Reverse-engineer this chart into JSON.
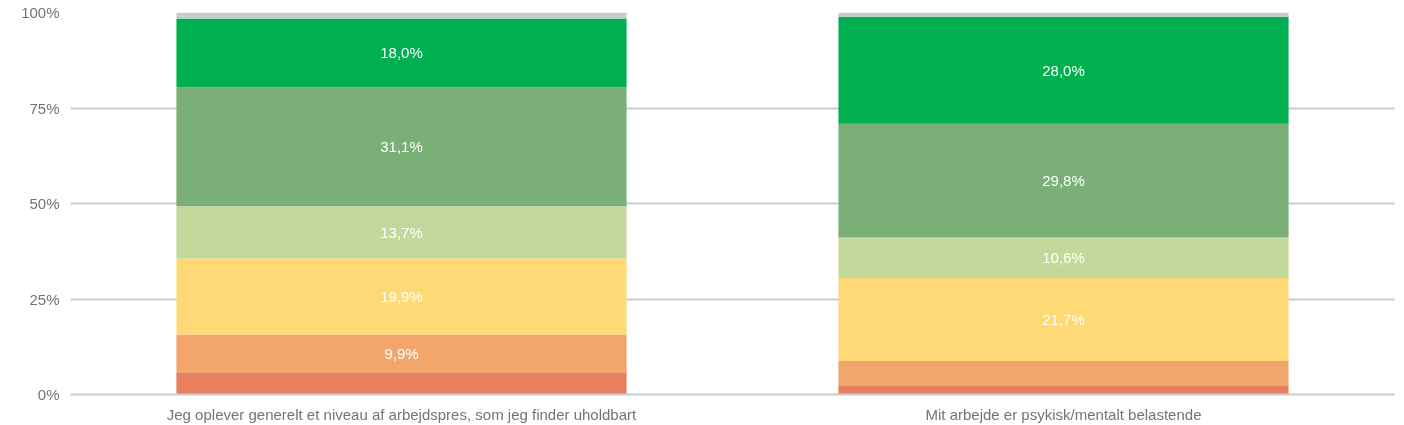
{
  "chart_data": {
    "type": "bar",
    "stacked": true,
    "categories": [
      "Jeg oplever generelt et niveau af arbejdspres, som jeg finder uholdbart",
      "Mit arbejde er psykisk/mentalt belastende"
    ],
    "series": [
      {
        "color": "#e8805f",
        "values": [
          5.8,
          2.4
        ],
        "value_labels": [
          null,
          null
        ]
      },
      {
        "color": "#f2a66b",
        "values": [
          9.9,
          6.4
        ],
        "value_labels": [
          "9,9%",
          null
        ]
      },
      {
        "color": "#fed975",
        "values": [
          19.9,
          21.7
        ],
        "value_labels": [
          "19,9%",
          "21,7%"
        ]
      },
      {
        "color": "#c5d89b",
        "values": [
          13.7,
          10.6
        ],
        "value_labels": [
          "13,7%",
          "10,6%"
        ]
      },
      {
        "color": "#7baf78",
        "values": [
          31.1,
          29.8
        ],
        "value_labels": [
          "31,1%",
          "29,8%"
        ]
      },
      {
        "color": "#00b050",
        "values": [
          18.0,
          28.0
        ],
        "value_labels": [
          "18,0%",
          "28,0%"
        ]
      },
      {
        "color": "#c8cbd0",
        "values": [
          1.6,
          1.1
        ],
        "value_labels": [
          null,
          null
        ]
      }
    ],
    "ylim": [
      0,
      100
    ],
    "yticks": [
      {
        "value": 0,
        "label": "0%"
      },
      {
        "value": 25,
        "label": "25%"
      },
      {
        "value": 50,
        "label": "50%"
      },
      {
        "value": 75,
        "label": "75%"
      },
      {
        "value": 100,
        "label": "100%"
      }
    ],
    "grid": "y"
  }
}
